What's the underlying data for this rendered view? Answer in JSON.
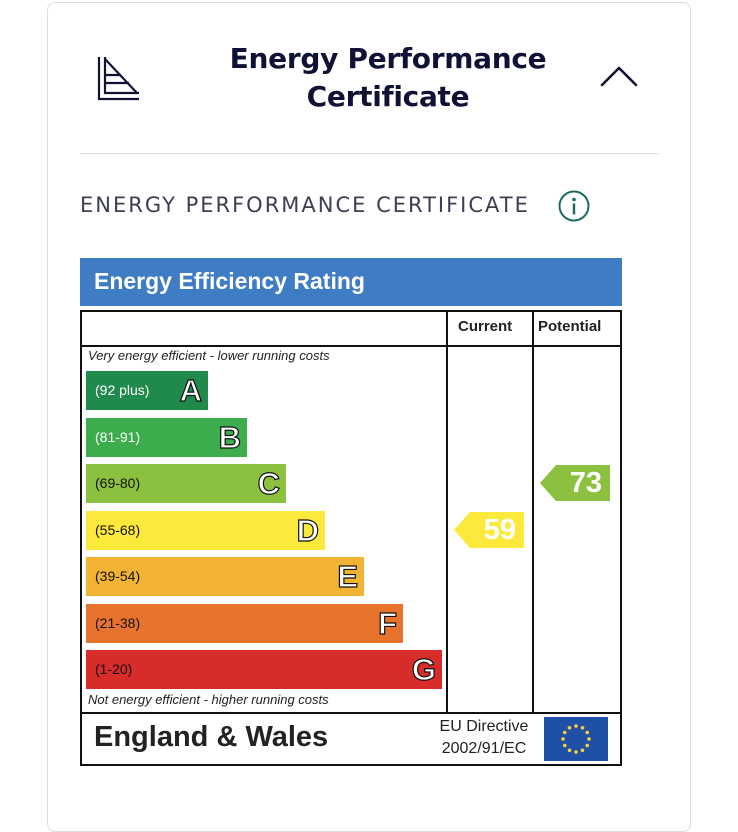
{
  "header": {
    "title": "Energy Performance Certificate",
    "icon": "document-chart-icon",
    "toggle_icon": "chevron-up-icon"
  },
  "section": {
    "label": "ENERGY PERFORMANCE CERTIFICATE",
    "info_icon": "info-icon"
  },
  "epc": {
    "title": "Energy Efficiency Rating",
    "col_current": "Current",
    "col_potential": "Potential",
    "note_top": "Very energy efficient - lower running costs",
    "note_bottom": "Not energy efficient - higher running costs",
    "bands": [
      {
        "range": "(92 plus)",
        "letter": "A",
        "color": "#1f8a4c"
      },
      {
        "range": "(81-91)",
        "letter": "B",
        "color": "#3cac4c"
      },
      {
        "range": "(69-80)",
        "letter": "C",
        "color": "#8cc140"
      },
      {
        "range": "(55-68)",
        "letter": "D",
        "color": "#fde93c"
      },
      {
        "range": "(39-54)",
        "letter": "E",
        "color": "#f2b234"
      },
      {
        "range": "(21-38)",
        "letter": "F",
        "color": "#e8732c"
      },
      {
        "range": "(1-20)",
        "letter": "G",
        "color": "#d82c2b"
      }
    ],
    "current": {
      "value": "59",
      "band": "D",
      "color": "#fde93c"
    },
    "potential": {
      "value": "73",
      "band": "C",
      "color": "#8cc140"
    },
    "country": "England & Wales",
    "directive_line1": "EU Directive",
    "directive_line2": "2002/91/EC"
  }
}
